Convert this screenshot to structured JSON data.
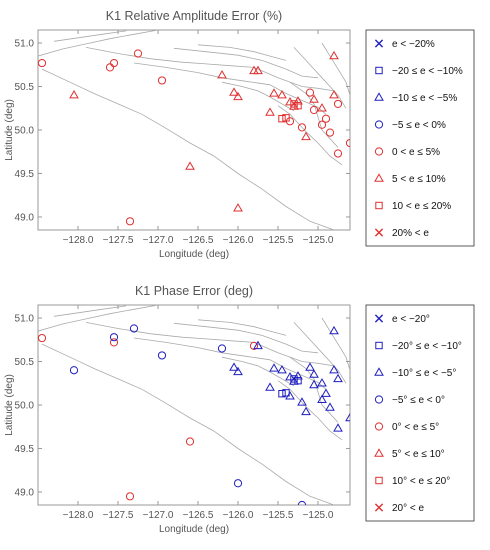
{
  "chart_data": [
    {
      "type": "scatter",
      "title": "K1 Relative Amplitude Error (%)",
      "xlabel": "Longitude (deg)",
      "ylabel": "Latitude (deg)",
      "xlim": [
        -128.5,
        -124.6
      ],
      "ylim": [
        48.85,
        51.15
      ],
      "xticks": [
        -128.0,
        -127.5,
        -127.0,
        -126.5,
        -126.0,
        -125.5,
        -125.0
      ],
      "xtick_labels": [
        "−128.0",
        "−127.5",
        "−127.0",
        "−126.5",
        "−126.0",
        "−125.5",
        "−125.0"
      ],
      "yticks": [
        49.0,
        49.5,
        50.0,
        50.5,
        51.0
      ],
      "ytick_labels": [
        "49.0",
        "49.5",
        "50.0",
        "50.5",
        "51.0"
      ],
      "legend": {
        "position": "right",
        "entries": [
          {
            "label": "e < −20%",
            "marker": "x",
            "color": "#1f1fbf"
          },
          {
            "label": "−20 ≤ e < −10%",
            "marker": "square",
            "color": "#1f1fbf"
          },
          {
            "label": "−10 ≤ e < −5%",
            "marker": "triangle",
            "color": "#1f1fbf"
          },
          {
            "label": "−5 ≤ e < 0%",
            "marker": "circle",
            "color": "#1f1fbf"
          },
          {
            "label": "0 < e ≤ 5%",
            "marker": "circle",
            "color": "#e03030"
          },
          {
            "label": "5 < e ≤ 10%",
            "marker": "triangle",
            "color": "#e03030"
          },
          {
            "label": "10 < e ≤ 20%",
            "marker": "square",
            "color": "#e03030"
          },
          {
            "label": "20% < e",
            "marker": "x",
            "color": "#e03030"
          }
        ]
      },
      "series": [
        {
          "marker": "circle",
          "color": "#e03030",
          "x": [
            -128.45,
            -127.6,
            -127.25,
            -127.55,
            -127.35,
            -126.95,
            -125.1,
            -124.75,
            -125.05,
            -124.9,
            -124.95,
            -124.85,
            -124.6,
            -124.75,
            -125.2,
            -125.35
          ],
          "y": [
            50.77,
            50.72,
            50.88,
            50.77,
            48.95,
            50.57,
            50.43,
            50.3,
            50.23,
            50.13,
            50.06,
            49.97,
            49.85,
            49.73,
            50.03,
            50.1
          ]
        },
        {
          "marker": "triangle",
          "color": "#e03030",
          "x": [
            -128.05,
            -126.6,
            -126.2,
            -126.05,
            -126.0,
            -125.8,
            -125.55,
            -125.45,
            -125.35,
            -125.25,
            -125.3,
            -125.05,
            -124.8,
            -124.95,
            -125.15,
            -125.6,
            -124.8,
            -126.0,
            -125.75
          ],
          "y": [
            50.4,
            49.58,
            50.63,
            50.43,
            50.38,
            50.68,
            50.42,
            50.4,
            50.32,
            50.33,
            50.27,
            50.35,
            50.85,
            50.25,
            49.92,
            50.2,
            50.4,
            49.1,
            50.68
          ]
        },
        {
          "marker": "square",
          "color": "#e03030",
          "x": [
            -125.45,
            -125.4,
            -125.25,
            -125.3
          ],
          "y": [
            50.13,
            50.14,
            50.28,
            50.3
          ]
        },
        {
          "marker": "triangle",
          "color": "#1f1fbf",
          "x": [],
          "y": []
        },
        {
          "marker": "circle",
          "color": "#1f1fbf",
          "x": [],
          "y": []
        }
      ]
    },
    {
      "type": "scatter",
      "title": "K1 Phase Error (deg)",
      "xlabel": "Longitude (deg)",
      "ylabel": "Latitude (deg)",
      "xlim": [
        -128.5,
        -124.6
      ],
      "ylim": [
        48.85,
        51.15
      ],
      "xticks": [
        -128.0,
        -127.5,
        -127.0,
        -126.5,
        -126.0,
        -125.5,
        -125.0
      ],
      "xtick_labels": [
        "−128.0",
        "−127.5",
        "−127.0",
        "−126.5",
        "−126.0",
        "−125.5",
        "−125.0"
      ],
      "yticks": [
        49.0,
        49.5,
        50.0,
        50.5,
        51.0
      ],
      "ytick_labels": [
        "49.0",
        "49.5",
        "50.0",
        "50.5",
        "51.0"
      ],
      "legend": {
        "position": "right",
        "entries": [
          {
            "label": "e < −20°",
            "marker": "x",
            "color": "#1f1fbf"
          },
          {
            "label": "−20° ≤ e < −10°",
            "marker": "square",
            "color": "#1f1fbf"
          },
          {
            "label": "−10° ≤ e < −5°",
            "marker": "triangle",
            "color": "#1f1fbf"
          },
          {
            "label": "−5° ≤ e < 0°",
            "marker": "circle",
            "color": "#1f1fbf"
          },
          {
            "label": "0° < e ≤ 5°",
            "marker": "circle",
            "color": "#e03030"
          },
          {
            "label": "5° < e ≤ 10°",
            "marker": "triangle",
            "color": "#e03030"
          },
          {
            "label": "10° < e ≤ 20°",
            "marker": "square",
            "color": "#e03030"
          },
          {
            "label": "20° < e",
            "marker": "x",
            "color": "#e03030"
          }
        ]
      },
      "series": [
        {
          "marker": "circle",
          "color": "#e03030",
          "x": [
            -128.45,
            -127.55,
            -127.35,
            -126.6,
            -125.8
          ],
          "y": [
            50.77,
            50.72,
            48.95,
            49.58,
            50.68
          ]
        },
        {
          "marker": "circle",
          "color": "#1f1fbf",
          "x": [
            -128.05,
            -127.55,
            -127.3,
            -126.95,
            -126.2,
            -126.0,
            -125.2
          ],
          "y": [
            50.4,
            50.78,
            50.88,
            50.57,
            50.65,
            49.1,
            48.85
          ]
        },
        {
          "marker": "triangle",
          "color": "#1f1fbf",
          "x": [
            -126.05,
            -126.0,
            -125.55,
            -125.45,
            -125.35,
            -125.25,
            -125.3,
            -125.05,
            -124.8,
            -124.95,
            -125.15,
            -125.6,
            -124.8,
            -125.1,
            -124.75,
            -125.05,
            -124.9,
            -124.95,
            -124.85,
            -124.6,
            -124.75,
            -125.2,
            -125.35,
            -125.75
          ],
          "y": [
            50.43,
            50.38,
            50.42,
            50.4,
            50.32,
            50.33,
            50.27,
            50.35,
            50.85,
            50.25,
            49.92,
            50.2,
            50.4,
            50.43,
            50.3,
            50.23,
            50.13,
            50.06,
            49.97,
            49.85,
            49.73,
            50.03,
            50.1,
            50.68
          ]
        },
        {
          "marker": "square",
          "color": "#1f1fbf",
          "x": [
            -125.45,
            -125.4,
            -125.25,
            -125.3
          ],
          "y": [
            50.13,
            50.14,
            50.28,
            50.3
          ]
        },
        {
          "marker": "triangle",
          "color": "#e03030",
          "x": [],
          "y": []
        }
      ]
    }
  ]
}
